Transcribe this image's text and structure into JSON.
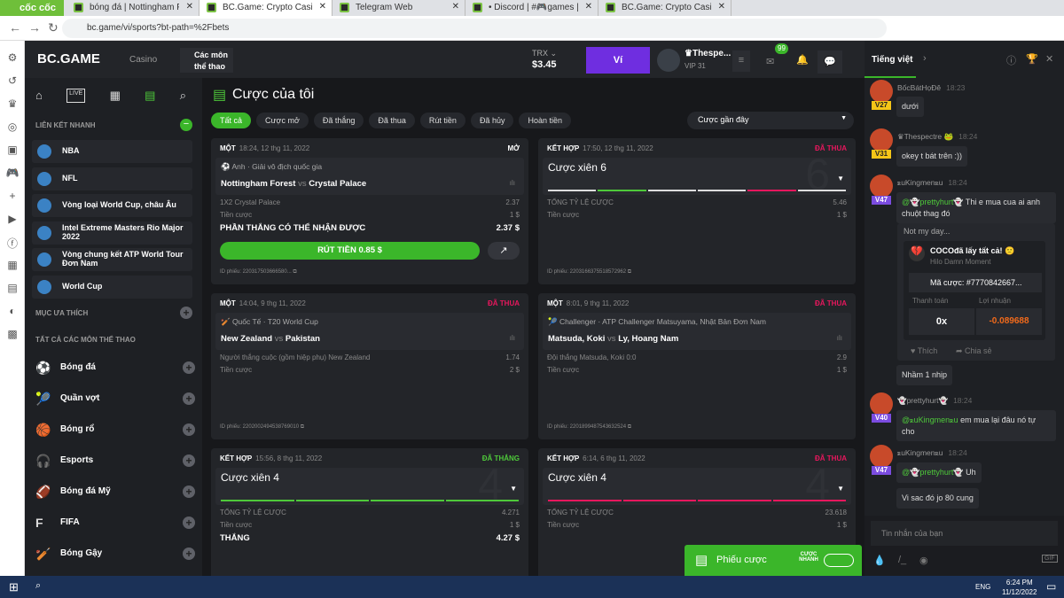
{
  "browser": {
    "brand": "cốc cốc",
    "url": "bc.game/vi/sports?bt-path=%2Fbets",
    "tabs": [
      {
        "title": "bóng đá | Nottingham Forest"
      },
      {
        "title": "BC.Game: Crypto Casino Gam",
        "active": true
      },
      {
        "title": "Telegram Web"
      },
      {
        "title": "• Discord | #🎮games | BC G"
      },
      {
        "title": "BC.Game: Crypto Casino Gam"
      }
    ]
  },
  "header": {
    "logo": "BC.GAME",
    "casino": "Casino",
    "sports": "Các môn thể thao",
    "currency": "TRX",
    "balance": "$3.45",
    "wallet": "Ví",
    "username": "♛Thespe...",
    "vip": "VIP 31",
    "mail_badge": "99",
    "accent": "#6f2ee0"
  },
  "sidebar": {
    "quick_links_title": "LIÊN KẾT NHANH",
    "quick_links": [
      "NBA",
      "NFL",
      "Vòng loại World Cup, châu Âu",
      "Intel Extreme Masters Rio Major 2022",
      "Vòng chung kết ATP World Tour Đơn Nam",
      "World Cup"
    ],
    "favorites_title": "MỤC ƯA THÍCH",
    "all_sports_title": "TẤT CẢ CÁC MÔN THỂ THAO",
    "sports": [
      {
        "label": "Bóng đá",
        "icon": "soccer-icon"
      },
      {
        "label": "Quần vợt",
        "icon": "tennis-icon"
      },
      {
        "label": "Bóng rổ",
        "icon": "basketball-icon"
      },
      {
        "label": "Esports",
        "icon": "headset-icon"
      },
      {
        "label": "Bóng đá Mỹ",
        "icon": "american-football-icon"
      },
      {
        "label": "FIFA",
        "icon": "fifa-icon"
      },
      {
        "label": "Bóng Gậy",
        "icon": "baseball-icon"
      }
    ]
  },
  "main": {
    "title": "Cược của tôi",
    "filters": [
      "Tất cả",
      "Cược mở",
      "Đã thắng",
      "Đã thua",
      "Rút tiền",
      "Đã hủy",
      "Hoàn tiền"
    ],
    "sort": "Cược gần đây",
    "cards": [
      {
        "type": "MỘT",
        "time": "18:24, 12 thg 11, 2022",
        "status": "MỞ",
        "status_color": "#ffffff",
        "league": "⚽ Anh · Giải vô địch quốc gia",
        "home": "Nottingham Forest",
        "vs": "vs",
        "away": "Crystal Palace",
        "rows": [
          [
            "1X2 Crystal Palace",
            "2.37"
          ],
          [
            "Tiền cược",
            "1 $"
          ]
        ],
        "win_label": "PHẦN THẮNG CÓ THỂ NHẬN ĐƯỢC",
        "win_value": "2.37 $",
        "cashout": "RÚT TIỀN 0.85 $",
        "ticket": "ID phiếu: 220317503666580... "
      },
      {
        "type": "KẾT HỢP",
        "time": "17:50, 12 thg 11, 2022",
        "status": "ĐÃ THUA",
        "status_color": "#e8175d",
        "parlay": "Cược xiên 6",
        "count": "6",
        "legs": [
          "#dddddd",
          "#4ec93a",
          "#dddddd",
          "#dddddd",
          "#e8175d",
          "#dddddd"
        ],
        "rows": [
          [
            "TỔNG TỶ LỆ CƯỢC",
            "5.46"
          ],
          [
            "Tiền cược",
            "1 $"
          ]
        ],
        "ticket": "ID phiếu: 220316637551857296​2"
      },
      {
        "type": "MỘT",
        "time": "14:04, 9 thg 11, 2022",
        "status": "ĐÃ THUA",
        "status_color": "#e8175d",
        "league": "🏏 Quốc Tế · T20 World Cup",
        "home": "New Zealand",
        "vs": "vs",
        "away": "Pakistan",
        "rows": [
          [
            "Người thắng cuộc (gồm hiệp phụ) New Zealand",
            "1.74"
          ],
          [
            "Tiền cược",
            "2 $"
          ]
        ],
        "ticket": "ID phiếu: 220200249453876901​0"
      },
      {
        "type": "MỘT",
        "time": "8:01, 9 thg 11, 2022",
        "status": "ĐÃ THUA",
        "status_color": "#e8175d",
        "league": "🎾 Challenger · ATP Challenger Matsuyama, Nhật Bản Đơn Nam",
        "home": "Matsuda, Koki",
        "vs": "vs",
        "away": "Ly, Hoang Nam",
        "rows": [
          [
            "Đội thắng Matsuda, Koki  0:0",
            "2.9"
          ],
          [
            "Tiền cược",
            "1 $"
          ]
        ],
        "ticket": "ID phiếu: 220189948754363252​4"
      },
      {
        "type": "KẾT HỢP",
        "time": "15:56, 8 thg 11, 2022",
        "status": "ĐÃ THẮNG",
        "status_color": "#4ec93a",
        "parlay": "Cược xiên 4",
        "count": "4",
        "legs": [
          "#4ec93a",
          "#4ec93a",
          "#4ec93a",
          "#4ec93a"
        ],
        "rows": [
          [
            "TỔNG TỶ LỆ CƯỢC",
            "4.271"
          ],
          [
            "Tiền cược",
            "1 $"
          ]
        ],
        "win_label": "THẮNG",
        "win_value": "4.27 $"
      },
      {
        "type": "KẾT HỢP",
        "time": "6:14, 6 thg 11, 2022",
        "status": "ĐÃ THUA",
        "status_color": "#e8175d",
        "parlay": "Cược xiên 4",
        "count": "4",
        "legs": [
          "#e8175d",
          "#e8175d",
          "#e8175d",
          "#e8175d"
        ],
        "rows": [
          [
            "TỔNG TỶ LỆ CƯỢC",
            "23.618"
          ],
          [
            "Tiền cược",
            "1 $"
          ]
        ]
      }
    ]
  },
  "betslip": {
    "label": "Phiếu cược",
    "quick": "CƯỢC NHANH"
  },
  "chat": {
    "language": "Tiếng việt",
    "input_placeholder": "Tin nhắn của bạn",
    "messages": [
      {
        "user": "BốcBátHọĐê",
        "time": "18:23",
        "vip": "V27",
        "text": "dưới"
      },
      {
        "user": "♛Thespectre 🐸",
        "time": "18:24",
        "vip": "V31",
        "text": "okey t bát trên :))"
      },
      {
        "user": "ꭱuKingmenꭱu",
        "time": "18:24",
        "vip": "V47",
        "mention": "@👻prettyhurt👻",
        "text": " Thi e mua cua ai anh chuột thag đó"
      },
      {
        "user": "👻prettyhurt👻",
        "time": "18:24",
        "vip": "V40",
        "mention": "@ꭱuKingmenꭱu",
        "text": " em mua lại đâu nó tự cho"
      },
      {
        "user": "ꭱuKingmenꭱu",
        "time": "18:24",
        "vip": "V47",
        "mention": "@👻prettyhurt👻",
        "text": " Uh"
      }
    ],
    "share": {
      "title": "Not my day...",
      "headline": "COCOđã lấy tất cả! 🙁",
      "game": "Hilo Damn Moment",
      "bet_id": "Mã cược: #7770842667...",
      "payout_label": "Thanh toán",
      "profit_label": "Lợi nhuận",
      "payout": "0x",
      "profit": "-0.089688",
      "like": "Thích",
      "share": "Chia sẻ"
    },
    "extra1": "Nhầm 1 nhịp",
    "extra2": "Vi sac đó jo 80 cung"
  },
  "taskbar": {
    "lang": "ENG",
    "time": "6:24 PM",
    "date": "11/12/2022"
  }
}
